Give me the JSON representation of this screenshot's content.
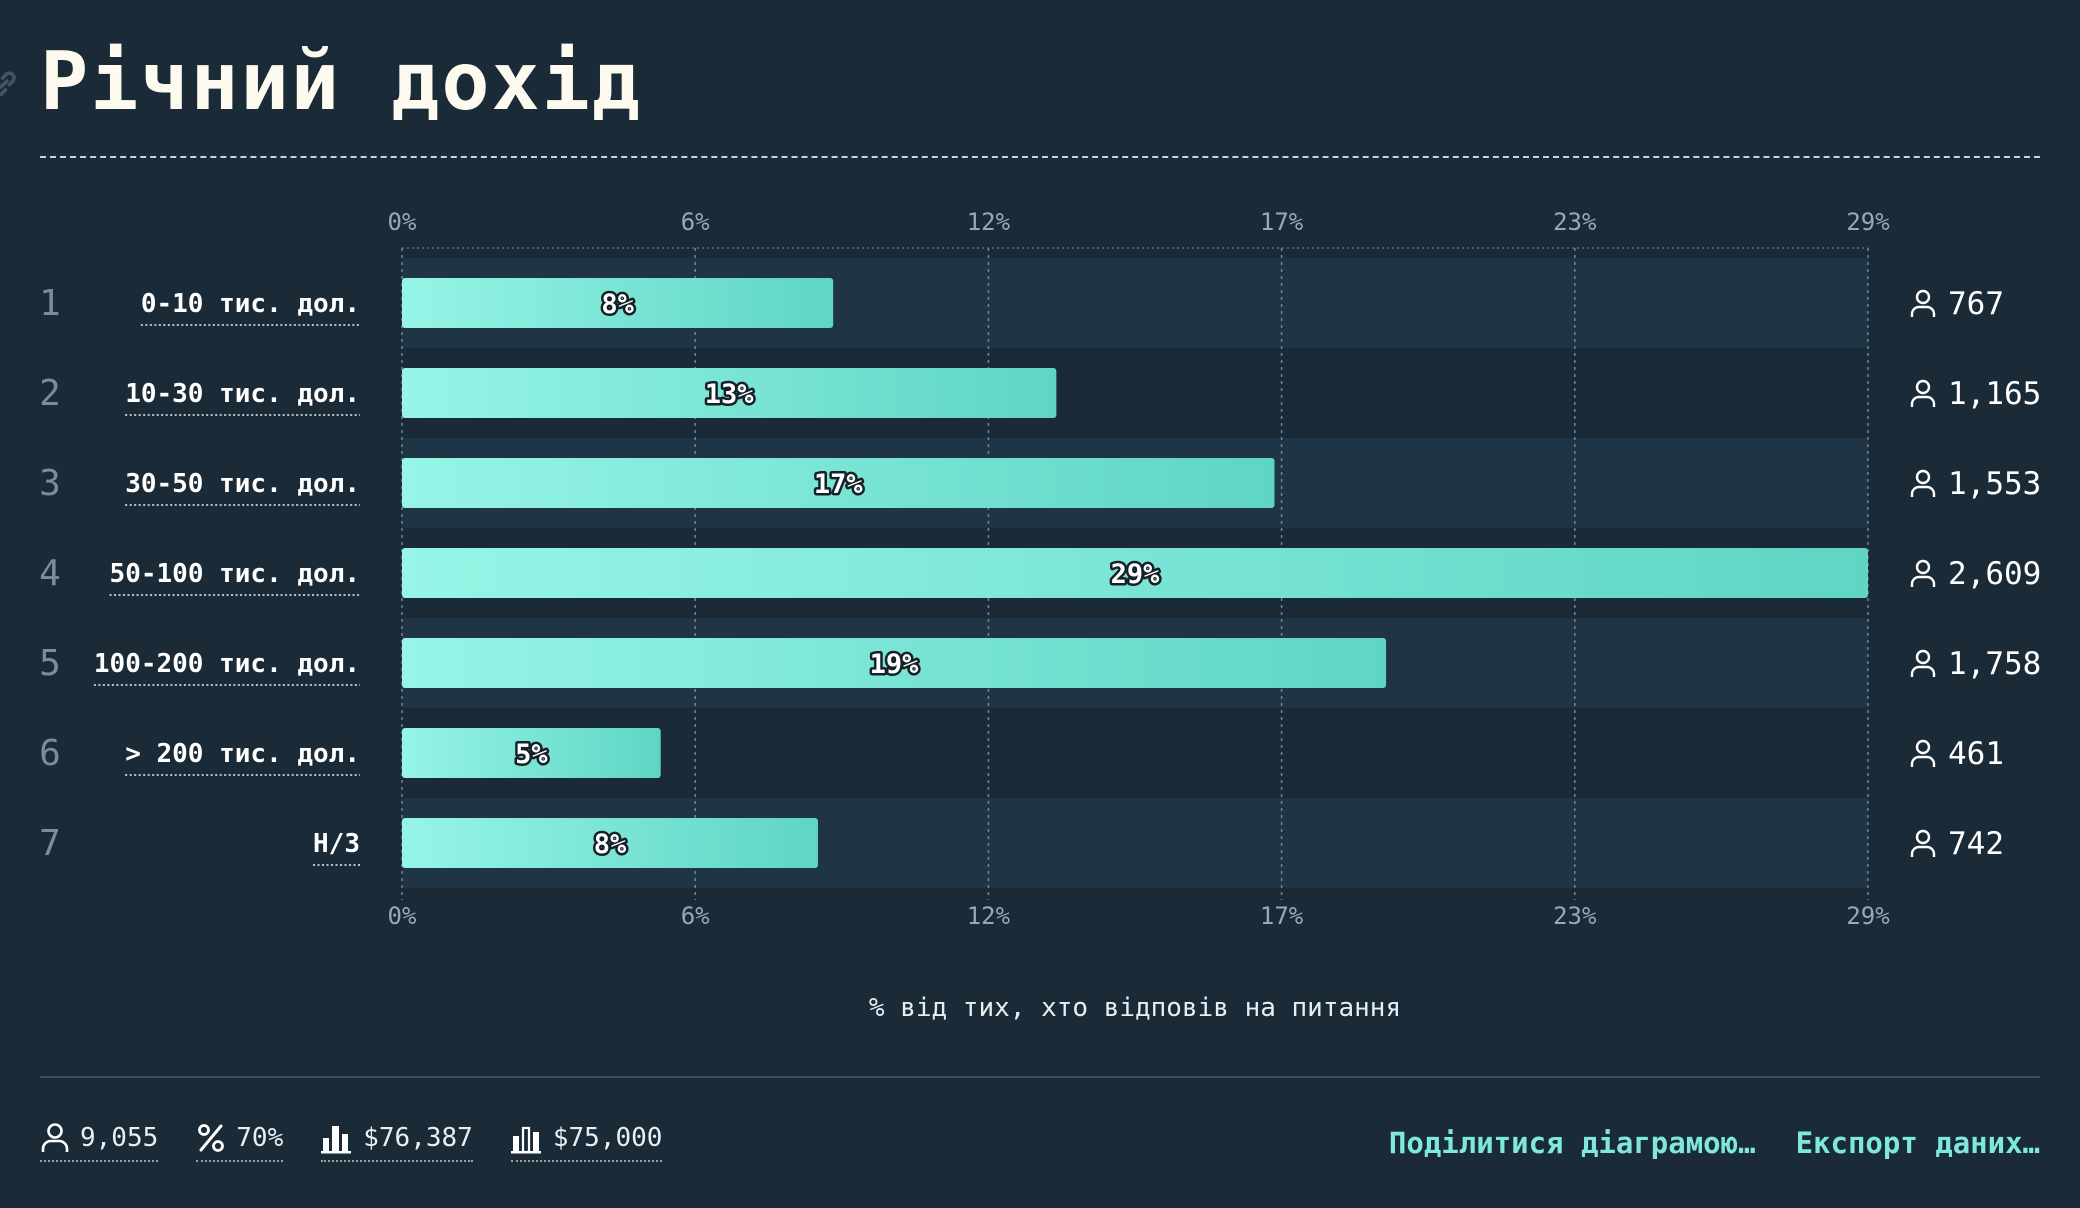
{
  "title": "Річний дохід",
  "colors": {
    "background": "#1a2a36",
    "row_band": "#1f3545",
    "bar_start": "#96f5e6",
    "bar_end": "#5fd5c4",
    "accent": "#7fe8dc",
    "tick_text": "#9aa8b1"
  },
  "chart_data": {
    "type": "bar",
    "orientation": "horizontal",
    "categories": [
      "0-10 тис. дол.",
      "10-30 тис. дол.",
      "30-50 тис. дол.",
      "50-100 тис. дол.",
      "100-200 тис. дол.",
      "> 200 тис. дол.",
      "Н/З"
    ],
    "row_numbers": [
      "1",
      "2",
      "3",
      "4",
      "5",
      "6",
      "7"
    ],
    "values": [
      8.5,
      12.9,
      17.2,
      28.9,
      19.4,
      5.1,
      8.2
    ],
    "value_labels": [
      "8%",
      "13%",
      "17%",
      "29%",
      "19%",
      "5%",
      "8%"
    ],
    "counts": [
      "767",
      "1,165",
      "1,553",
      "2,609",
      "1,758",
      "461",
      "742"
    ],
    "xlim": [
      0,
      28.9
    ],
    "xticks": [
      0,
      5.78,
      11.56,
      17.34,
      23.12,
      28.9
    ],
    "xtick_labels": [
      "0%",
      "6%",
      "12%",
      "17%",
      "23%",
      "29%"
    ],
    "xlabel": "% від тих, хто відповів на питання",
    "grid": true
  },
  "footer": {
    "stats": [
      {
        "icon": "person-icon",
        "value": "9,055"
      },
      {
        "icon": "percent-icon",
        "value": "70%"
      },
      {
        "icon": "mean-bar-icon",
        "value": "$76,387"
      },
      {
        "icon": "median-bar-icon",
        "value": "$75,000"
      }
    ],
    "share_label": "Поділитися діаграмою…",
    "export_label": "Експорт даних…"
  }
}
